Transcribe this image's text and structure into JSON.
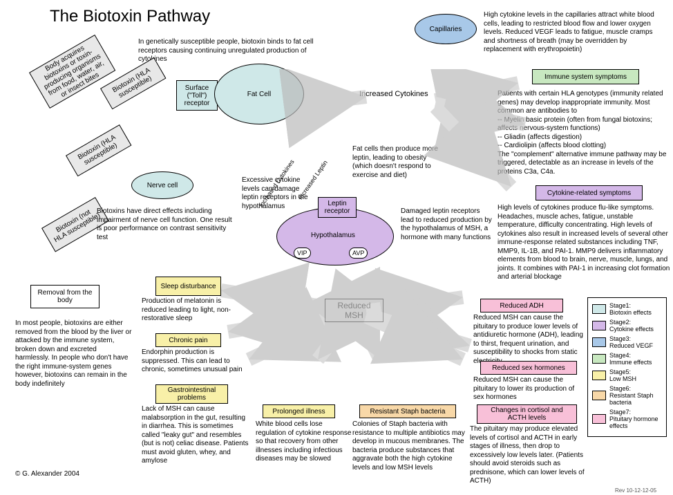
{
  "title": "The Biotoxin Pathway",
  "intro": "In genetically susceptible people, biotoxin binds to fat cell receptors causing continuing unregulated production of cytokines",
  "acquire": "Body acquires biotoxins or toxin-producing organisms from food, water, air, or insect bites",
  "biotoxin_s": "Biotoxin (HLA susceptible)",
  "biotoxin_s2": "Biotoxin (HLA susceptible)",
  "biotoxin_ns": "Biotoxin (not HLA susceptible)",
  "surface": "Surface (\"Toll\") receptor",
  "fatcell": "Fat Cell",
  "nervecell": "Nerve cell",
  "nerve_text": "Biotoxins have direct effects including impairment of nerve cell function. One result is poor performance on contrast sensitivity test",
  "removal": "Removal from the body",
  "removal_text": "In most people, biotoxins are either removed from the blood by the liver or attacked by the immune system, broken down and excreted harmlessly. In people who don't have the right immune-system genes however, biotoxins can remain in the body indefinitely",
  "capillaries": "Capillaries",
  "cap_text": "High cytokine levels in the capillaries attract white blood cells, leading to restricted blood flow and lower oxygen levels. Reduced VEGF leads to fatigue, muscle cramps and shortness of breath (may be overridden by replacement with erythropoietin)",
  "inc_cyto": "Increased Cytokines",
  "inc_cyto_diag": "Increased Cytokines",
  "inc_leptin": "Increased Leptin",
  "fat_text": "Fat cells then produce more leptin, leading to obesity (which doesn't respond to exercise and diet)",
  "excessive": "Excessive cytokine levels can damage leptin receptors in the hypothalamus",
  "leptin_r": "Leptin receptor",
  "hypo": "Hypothalamus",
  "vip": "VIP",
  "avp": "AVP",
  "damaged": "Damaged leptin receptors lead to reduced production by the hypothalamus of MSH, a hormone with many functions",
  "immune_sym": "Immune system symptoms",
  "immune_text": "Patients with certain HLA genotypes (immunity related genes) may develop inappropriate immunity. Most common are antibodies to\n-- Myelin basic protein (often from fungal biotoxins; affects nervous-system functions)\n-- Gliadin (affects digestion)\n-- Cardiolipin (affects blood clotting)\nThe \"complement\" alternative immune pathway may be triggered, detectable as an increase in levels of the proteins C3a, C4a.",
  "cyto_sym": "Cytokine-related symptoms",
  "cyto_text": "High levels of cytokines produce flu-like symptoms. Headaches, muscle aches, fatigue, unstable temperature, difficulty concentrating. High levels of cytokines also result in increased levels of several other immune-response related substances including TNF, MMP9, IL-1B, and PAI-1. MMP9 delivers inflammatory elements from blood to brain, nerve, muscle, lungs, and joints. It combines with PAI-1 in increasing clot formation and arterial blockage",
  "reduced_msh": "Reduced MSH",
  "sleep": "Sleep disturbance",
  "sleep_t": "Production of melatonin is reduced leading to light, non-restorative sleep",
  "chronic": "Chronic pain",
  "chronic_t": "Endorphin production is suppressed. This can lead to chronic, sometimes unusual pain",
  "gi": "Gastrointestinal problems",
  "gi_t": "Lack of MSH can cause malabsorption in the gut, resulting in diarrhea. This is sometimes called \"leaky gut\" and resembles (but is not) celiac disease. Patients must avoid gluten, whey, and amylose",
  "prolonged": "Prolonged illness",
  "prolonged_t": "White blood cells lose regulation of cytokine response so that recovery from other illnesses including infectious diseases may be slowed",
  "staph": "Resistant Staph bacteria",
  "staph_t": "Colonies of Staph bacteria with resistance to multiple antibiotics may develop in mucous membranes. The bacteria produce substances that aggravate both the high cytokine levels and low MSH levels",
  "adh": "Reduced ADH",
  "adh_t": "Reduced MSH can cause the pituitary to produce lower levels of antidiuretic hormone (ADH), leading to thirst, frequent urination, and susceptibility to shocks from static electricity",
  "sex": "Reduced sex hormones",
  "sex_t": "Reduced MSH can cause the pituitary to lower its production of sex hormones",
  "cortisol": "Changes in cortisol and ACTH levels",
  "cortisol_t": "The pituitary may produce elevated levels of cortisol and ACTH in early stages of illness, then drop to excessively low levels later. (Patients should avoid steroids such as prednisone, which can lower levels of ACTH)",
  "legend": [
    {
      "label": "Stage1:\nBiotoxin effects",
      "color": "#cfe8e8"
    },
    {
      "label": "Stage2:\nCytokine effects",
      "color": "#d4b8e8"
    },
    {
      "label": "Stage3:\nReduced VEGF",
      "color": "#a8c8e8"
    },
    {
      "label": "Stage4:\nImmune effects",
      "color": "#c8e8c0"
    },
    {
      "label": "Stage5:\nLow MSH",
      "color": "#f8f0a8"
    },
    {
      "label": "Stage6:\nResistant Staph bacteria",
      "color": "#f8d8a8"
    },
    {
      "label": "Stage7:\nPituitary hormone effects",
      "color": "#f8c0d8"
    }
  ],
  "colors": {
    "stage1": "#cfe8e8",
    "stage2": "#d4b8e8",
    "stage3": "#a8c8e8",
    "stage4": "#c8e8c0",
    "stage5": "#f8f0a8",
    "stage6": "#f8d8a8",
    "stage7": "#f8c0d8",
    "grey": "#e8e8e8"
  },
  "copyright": "© G. Alexander 2004",
  "rev": "Rev 10-12-12-05"
}
